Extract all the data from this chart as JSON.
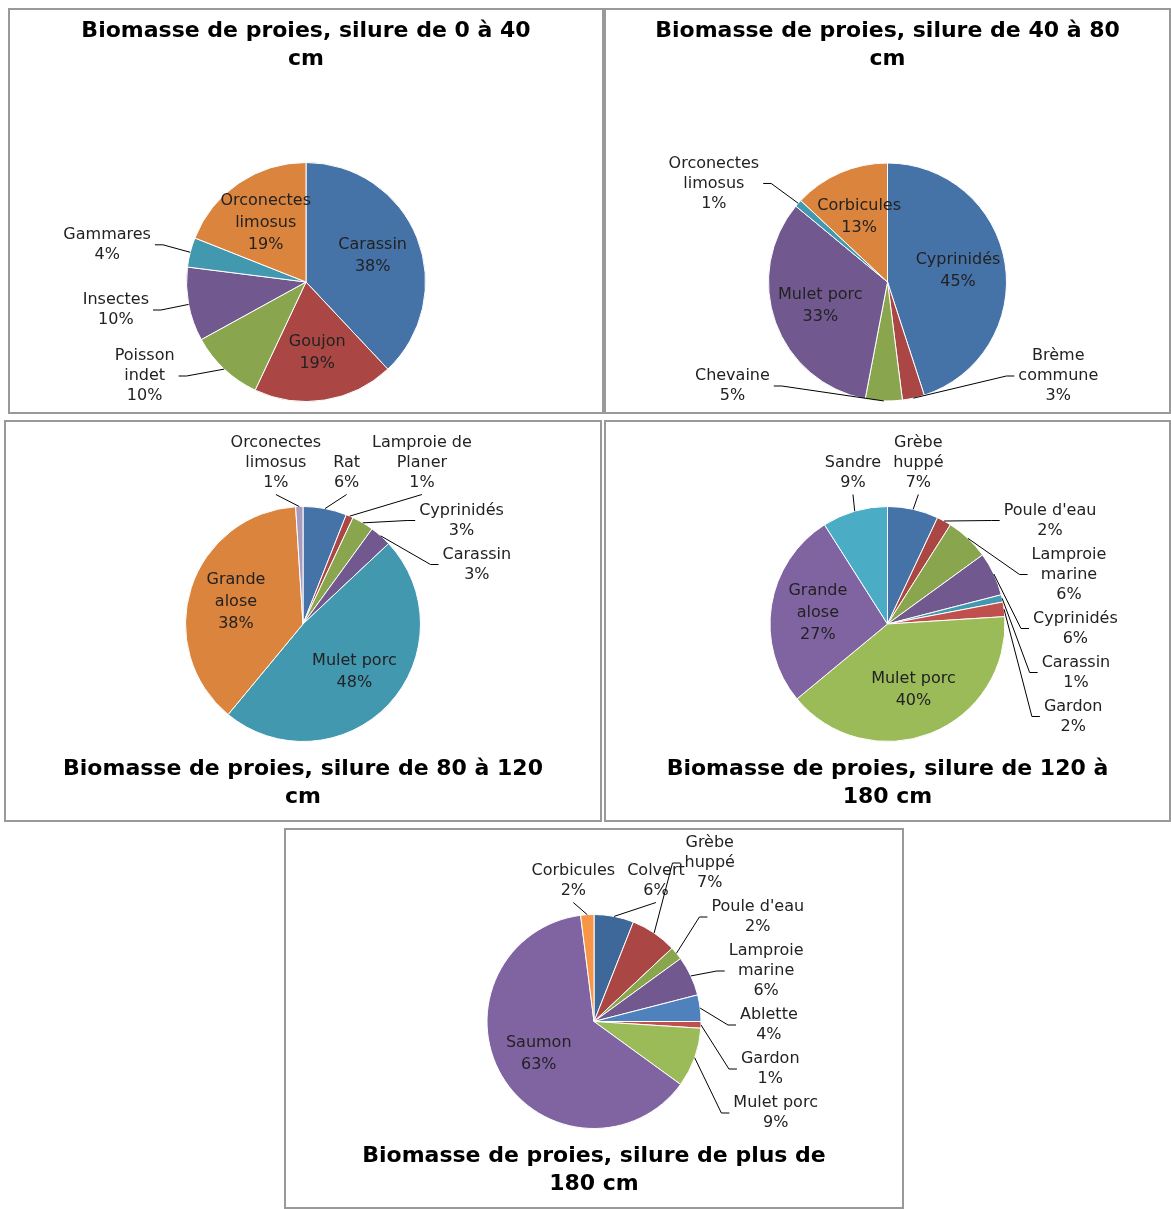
{
  "chart_data": [
    {
      "type": "pie",
      "title": "Biomasse de proies, silure de 0 à 40 cm",
      "categories": [
        "Carassin",
        "Goujon",
        "Poisson indet",
        "Insectes",
        "Gammares",
        "Orconectes limosus"
      ],
      "values": [
        38,
        19,
        10,
        10,
        4,
        19
      ],
      "value_labels": [
        "38%",
        "19%",
        "10%",
        "10%",
        "4%",
        "19%"
      ],
      "colors": [
        "#4572a7",
        "#aa4643",
        "#89a54e",
        "#71588f",
        "#4198af",
        "#db843d"
      ]
    },
    {
      "type": "pie",
      "title": "Biomasse de proies, silure de 40 à 80 cm",
      "categories": [
        "Cyprinidés",
        "Brème commune",
        "Chevaine",
        "Mulet porc",
        "Orconectes limosus",
        "Corbicules"
      ],
      "values": [
        45,
        3,
        5,
        33,
        1,
        13
      ],
      "value_labels": [
        "45%",
        "3%",
        "5%",
        "33%",
        "1%",
        "13%"
      ],
      "colors": [
        "#4572a7",
        "#aa4643",
        "#89a54e",
        "#71588f",
        "#4198af",
        "#db843d"
      ]
    },
    {
      "type": "pie",
      "title": "Biomasse de proies, silure de 80 à 120 cm",
      "categories": [
        "Rat",
        "Lamproie de Planer",
        "Cyprinidés",
        "Carassin",
        "Mulet porc",
        "Grande alose",
        "Orconectes limosus"
      ],
      "values": [
        6,
        1,
        3,
        3,
        48,
        38,
        1
      ],
      "value_labels": [
        "6%",
        "1%",
        "3%",
        "3%",
        "48%",
        "38%",
        "1%"
      ],
      "colors": [
        "#4572a7",
        "#aa4643",
        "#89a54e",
        "#71588f",
        "#4198af",
        "#db843d",
        "#a99bbd"
      ]
    },
    {
      "type": "pie",
      "title": "Biomasse de proies, silure de 120 à 180 cm",
      "categories": [
        "Grèbe huppé",
        "Poule d'eau",
        "Lamproie marine",
        "Cyprinidés",
        "Carassin",
        "Gardon",
        "Mulet porc",
        "Grande alose",
        "Sandre"
      ],
      "values": [
        7,
        2,
        6,
        6,
        1,
        2,
        40,
        27,
        9
      ],
      "value_labels": [
        "7%",
        "2%",
        "6%",
        "6%",
        "1%",
        "2%",
        "40%",
        "27%",
        "9%"
      ],
      "colors": [
        "#4572a7",
        "#aa4643",
        "#89a54e",
        "#71588f",
        "#4198af",
        "#c0504d",
        "#9bbb59",
        "#8064a2",
        "#4bacc6"
      ]
    },
    {
      "type": "pie",
      "title": "Biomasse de proies, silure de plus de 180 cm",
      "categories": [
        "Colvert",
        "Grèbe huppé",
        "Poule d'eau",
        "Lamproie marine",
        "Ablette",
        "Gardon",
        "Mulet porc",
        "Saumon",
        "Corbicules"
      ],
      "values": [
        6,
        7,
        2,
        6,
        4,
        1,
        9,
        63,
        2
      ],
      "value_labels": [
        "6%",
        "7%",
        "2%",
        "6%",
        "4%",
        "1%",
        "9%",
        "63%",
        "2%"
      ],
      "colors": [
        "#3d6899",
        "#aa4643",
        "#89a54e",
        "#71588f",
        "#4f81bd",
        "#c0504d",
        "#9bbb59",
        "#8064a2",
        "#f79646"
      ]
    }
  ]
}
